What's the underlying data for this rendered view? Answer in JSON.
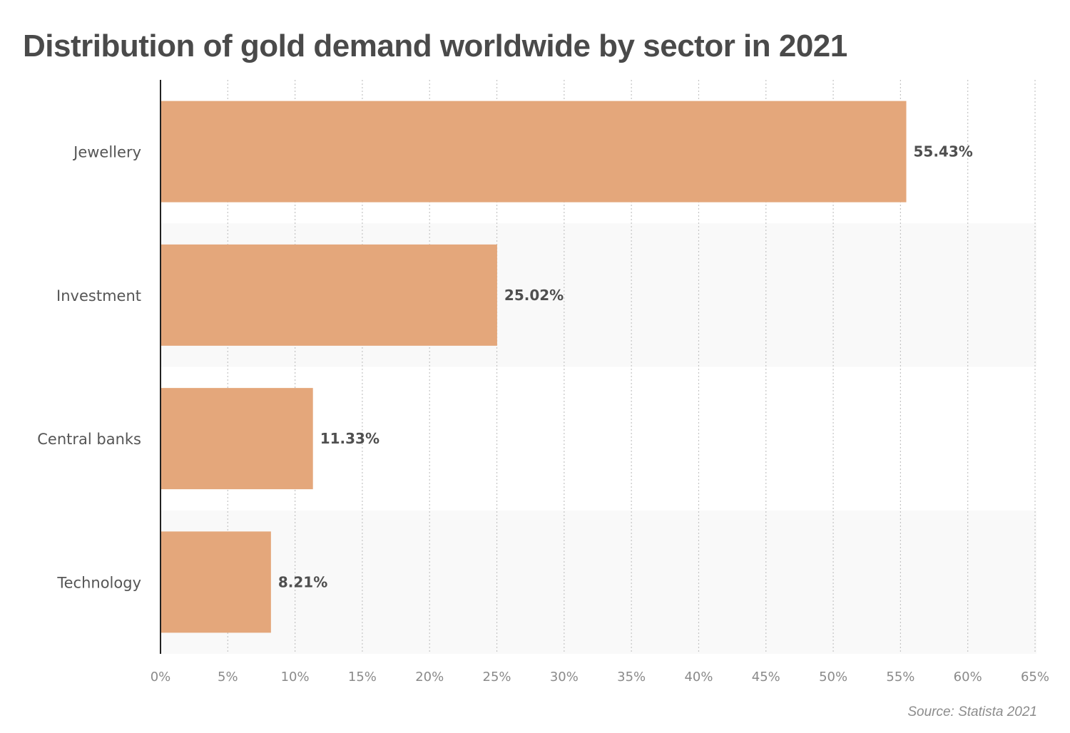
{
  "chart_data": {
    "type": "bar",
    "orientation": "horizontal",
    "title": "Distribution of gold demand worldwide by sector in 2021",
    "categories": [
      "Jewellery",
      "Investment",
      "Central banks",
      "Technology"
    ],
    "values": [
      55.43,
      25.02,
      11.33,
      8.21
    ],
    "value_labels": [
      "55.43%",
      "25.02%",
      "11.33%",
      "8.21%"
    ],
    "xlim": [
      0,
      65
    ],
    "xticks": [
      0,
      5,
      10,
      15,
      20,
      25,
      30,
      35,
      40,
      45,
      50,
      55,
      60,
      65
    ],
    "xtick_labels": [
      "0%",
      "5%",
      "10%",
      "15%",
      "20%",
      "25%",
      "30%",
      "35%",
      "40%",
      "45%",
      "50%",
      "55%",
      "60%",
      "65%"
    ],
    "xlabel": "",
    "ylabel": "",
    "grid": "vertical dotted",
    "bar_color": "#e4a77b",
    "band_color": "#f9f9f9",
    "source": "Source: Statista 2021"
  }
}
